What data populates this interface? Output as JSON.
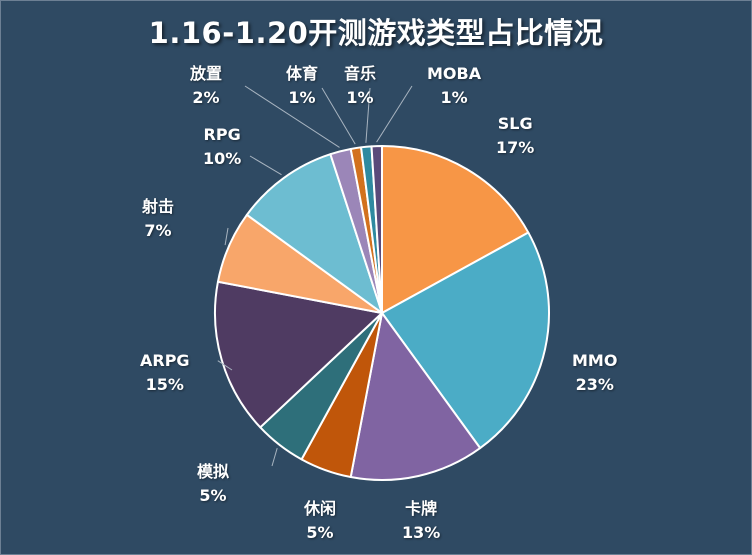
{
  "chart_data": {
    "type": "pie",
    "title": "1.16-1.20开测游戏类型占比情况",
    "categories": [
      "SLG",
      "MMO",
      "卡牌",
      "休闲",
      "模拟",
      "ARPG",
      "射击",
      "RPG",
      "放置",
      "体育",
      "音乐",
      "MOBA"
    ],
    "values": [
      17,
      23,
      13,
      5,
      5,
      15,
      7,
      10,
      2,
      1,
      1,
      1
    ],
    "value_labels": [
      "17%",
      "23%",
      "13%",
      "5%",
      "5%",
      "15%",
      "7%",
      "10%",
      "2%",
      "1%",
      "1%",
      "1%"
    ],
    "colors": [
      "#f79646",
      "#4bacc6",
      "#8064a2",
      "#c0560a",
      "#2e6f7a",
      "#4f3b62",
      "#f8a66a",
      "#6dbdd1",
      "#9b86b8",
      "#d2711e",
      "#2f8aa0",
      "#5a4a7a"
    ],
    "start_angle_deg": 0,
    "direction": "clockwise",
    "legend": "none",
    "label_position": "outside-with-leader-lines"
  }
}
